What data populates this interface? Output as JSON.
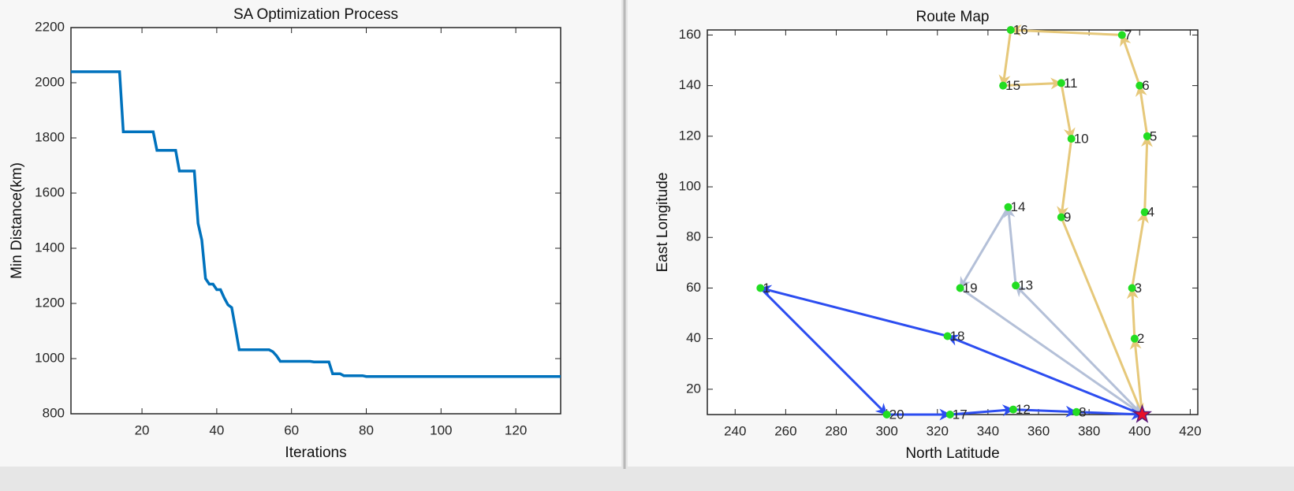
{
  "chart_data": [
    {
      "type": "line",
      "title": "SA Optimization Process",
      "xlabel": "Iterations",
      "ylabel": "Min Distance(km)",
      "x": [
        1,
        14,
        15,
        23,
        24,
        29,
        30,
        34,
        35,
        36,
        37,
        38,
        39,
        40,
        41,
        42,
        43,
        44,
        45,
        46,
        54,
        55,
        56,
        57,
        65,
        66,
        70,
        71,
        73,
        74,
        79,
        80,
        132
      ],
      "values": [
        2040,
        2040,
        1822,
        1822,
        1755,
        1755,
        1680,
        1680,
        1490,
        1430,
        1290,
        1270,
        1270,
        1250,
        1250,
        1220,
        1195,
        1185,
        1110,
        1032,
        1032,
        1025,
        1010,
        990,
        990,
        988,
        988,
        945,
        945,
        938,
        938,
        935,
        935
      ],
      "color": "#0072bd",
      "xlim": [
        1,
        132
      ],
      "xticks": [
        20,
        40,
        60,
        80,
        100,
        120
      ],
      "ylim": [
        800,
        2200
      ],
      "yticks": [
        800,
        1000,
        1200,
        1400,
        1600,
        1800,
        2000,
        2200
      ]
    },
    {
      "type": "route",
      "title": "Route Map",
      "xlabel": "North Latitude",
      "ylabel": "East Longitude",
      "points": {
        "labels": [
          null,
          1,
          2,
          3,
          4,
          5,
          6,
          7,
          8,
          9,
          10,
          11,
          12,
          13,
          14,
          15,
          16,
          17,
          18,
          19,
          20
        ],
        "x": [
          401,
          250,
          398,
          397,
          402,
          403,
          400,
          393,
          375,
          369,
          373,
          369,
          350,
          351,
          348,
          346,
          349,
          325,
          324,
          329,
          300
        ],
        "y": [
          10,
          60,
          40,
          60,
          90,
          120,
          140,
          160,
          11,
          88,
          119,
          141,
          12,
          61,
          92,
          140,
          162,
          10,
          41,
          60,
          10
        ],
        "color": "#22dd22"
      },
      "depot_color": "#e8102a",
      "routes": [
        {
          "color": "#e6c87a",
          "stops": [
            0,
            2,
            3,
            4,
            5,
            6,
            7,
            16,
            15,
            11,
            10,
            9,
            0
          ]
        },
        {
          "color": "#b4c0d8",
          "stops": [
            0,
            13,
            14,
            19,
            0
          ]
        },
        {
          "color": "#2c4df0",
          "stops": [
            0,
            18,
            1,
            20,
            17,
            12,
            8,
            0
          ]
        }
      ],
      "xlim": [
        229,
        423
      ],
      "xticks": [
        240,
        260,
        280,
        300,
        320,
        340,
        360,
        380,
        400,
        420
      ],
      "ylim": [
        10,
        162
      ],
      "yticks": [
        20,
        40,
        60,
        80,
        100,
        120,
        140,
        160
      ]
    }
  ]
}
